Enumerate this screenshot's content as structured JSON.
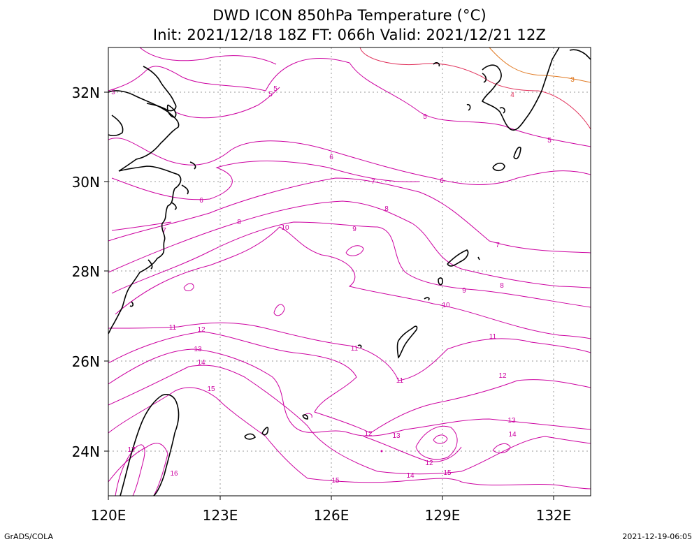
{
  "title": {
    "line1": "DWD ICON 850hPa Temperature (°C)",
    "line2": "Init: 2021/12/18 18Z  FT: 066h  Valid: 2021/12/21 12Z"
  },
  "axes": {
    "lon_ticks": [
      "120E",
      "123E",
      "126E",
      "129E",
      "132E"
    ],
    "lat_ticks": [
      "32N",
      "30N",
      "28N",
      "26N",
      "24N"
    ],
    "lon_range": [
      120,
      133
    ],
    "lat_range": [
      23,
      33
    ]
  },
  "contour_labels": [
    {
      "id": "l5a",
      "text": "5"
    },
    {
      "id": "l5b",
      "text": "5"
    },
    {
      "id": "l5c",
      "text": "5"
    },
    {
      "id": "l5d",
      "text": "5"
    },
    {
      "id": "l5e",
      "text": "5"
    },
    {
      "id": "l3",
      "text": "3"
    },
    {
      "id": "l4",
      "text": "4"
    },
    {
      "id": "l6a",
      "text": "6"
    },
    {
      "id": "l6b",
      "text": "6"
    },
    {
      "id": "l6c",
      "text": "6"
    },
    {
      "id": "l7a",
      "text": "7"
    },
    {
      "id": "l7b",
      "text": "7"
    },
    {
      "id": "l7c",
      "text": "7"
    },
    {
      "id": "l8a",
      "text": "8"
    },
    {
      "id": "l8b",
      "text": "8"
    },
    {
      "id": "l8c",
      "text": "8"
    },
    {
      "id": "l9a",
      "text": "9"
    },
    {
      "id": "l9b",
      "text": "9"
    },
    {
      "id": "l10a",
      "text": "10"
    },
    {
      "id": "l10b",
      "text": "10"
    },
    {
      "id": "l11a",
      "text": "11"
    },
    {
      "id": "l11b",
      "text": "11"
    },
    {
      "id": "l11c",
      "text": "11"
    },
    {
      "id": "l11d",
      "text": "11"
    },
    {
      "id": "l12a",
      "text": "12"
    },
    {
      "id": "l12b",
      "text": "12"
    },
    {
      "id": "l12c",
      "text": "12"
    },
    {
      "id": "l12d",
      "text": "12"
    },
    {
      "id": "l13a",
      "text": "13"
    },
    {
      "id": "l13b",
      "text": "13"
    },
    {
      "id": "l13c",
      "text": "13"
    },
    {
      "id": "l14a",
      "text": "14"
    },
    {
      "id": "l14b",
      "text": "14"
    },
    {
      "id": "l14c",
      "text": "14"
    },
    {
      "id": "l15a",
      "text": "15"
    },
    {
      "id": "l15b",
      "text": "15"
    },
    {
      "id": "l15c",
      "text": "15"
    },
    {
      "id": "l16",
      "text": "16"
    },
    {
      "id": "l17",
      "text": "17"
    }
  ],
  "colors": {
    "contour_main": "#cc00a0",
    "contour_warm_low": "#e0305a",
    "contour_orange": "#e07820",
    "coast": "#000000",
    "grid": "#999999"
  },
  "footer": {
    "left": "GrADS/COLA",
    "right": "2021-12-19-06:05"
  }
}
